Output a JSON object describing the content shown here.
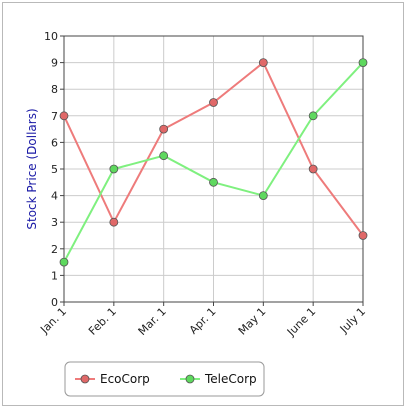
{
  "chart_data": {
    "type": "line",
    "title": "",
    "xlabel": "",
    "ylabel": "Stock Price (Dollars)",
    "categories": [
      "Jan. 1",
      "Feb. 1",
      "Mar. 1",
      "Apr. 1",
      "May 1",
      "June 1",
      "July 1"
    ],
    "ylim": [
      0,
      10
    ],
    "yticks": [
      0,
      1,
      2,
      3,
      4,
      5,
      6,
      7,
      8,
      9,
      10
    ],
    "grid": true,
    "legend_position": "bottom-left",
    "series": [
      {
        "name": "EcoCorp",
        "values": [
          7,
          3,
          6.5,
          7.5,
          9,
          5,
          2.5
        ],
        "line_color": "#ee7b7b",
        "marker_color": "#e06868"
      },
      {
        "name": "TeleCorp",
        "values": [
          1.5,
          5,
          5.5,
          4.5,
          4,
          7,
          9
        ],
        "line_color": "#7ff07f",
        "marker_color": "#5ed85e"
      }
    ]
  }
}
